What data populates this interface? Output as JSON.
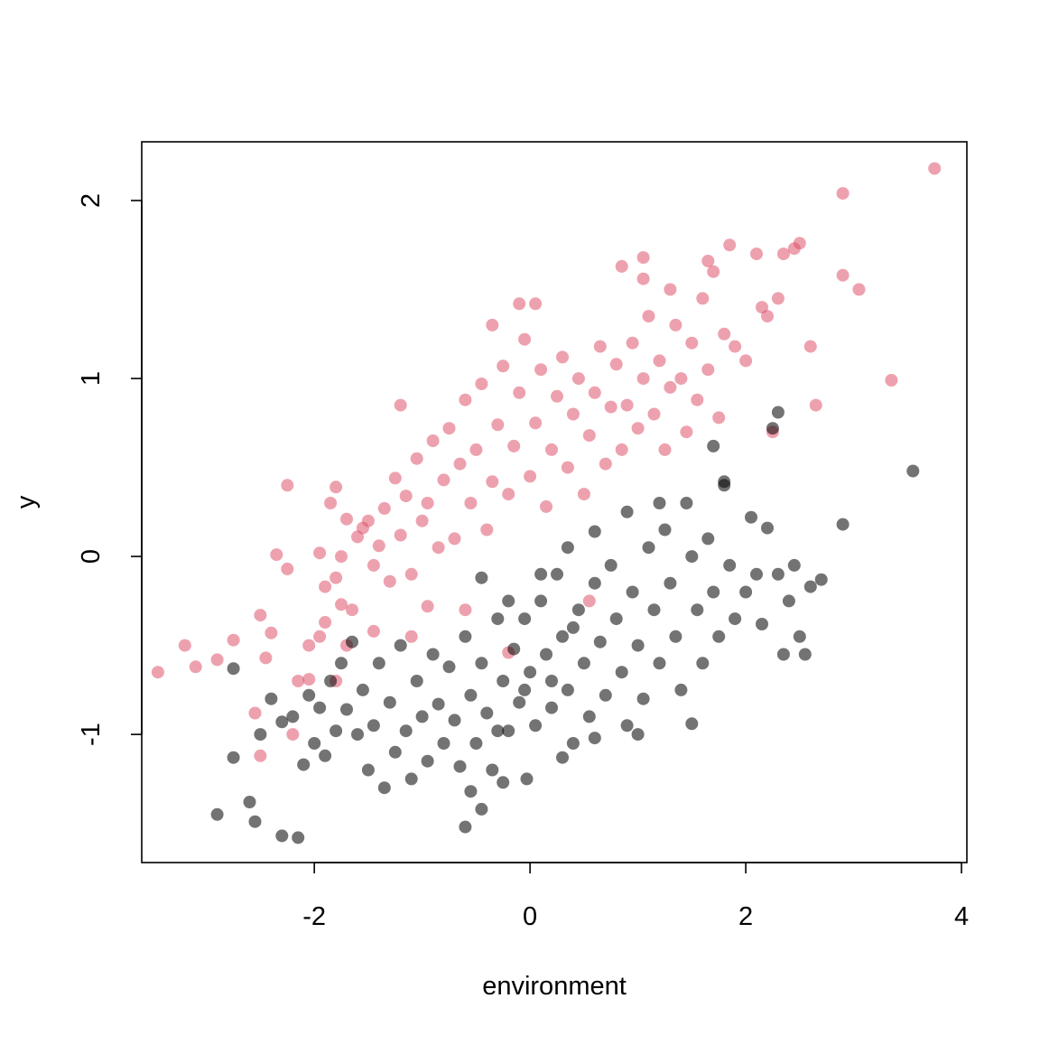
{
  "chart_data": {
    "type": "scatter",
    "title": "",
    "xlabel": "environment",
    "ylabel": "y",
    "xlim": [
      -3.6,
      4.05
    ],
    "ylim": [
      -1.72,
      2.33
    ],
    "x_ticks": [
      -2,
      0,
      2,
      4
    ],
    "y_ticks": [
      -1,
      0,
      1,
      2
    ],
    "x_tick_labels": [
      "-2",
      "0",
      "2",
      "4"
    ],
    "y_tick_labels": [
      "-1",
      "0",
      "1",
      "2"
    ],
    "grid": false,
    "legend": "none",
    "marker": "filled circle, semi-transparent",
    "series": [
      {
        "color": "#DF536B",
        "points": [
          [
            -3.45,
            -0.65
          ],
          [
            -3.1,
            -0.62
          ],
          [
            -3.2,
            -0.5
          ],
          [
            -2.9,
            -0.58
          ],
          [
            -2.75,
            -0.47
          ],
          [
            -2.55,
            -0.88
          ],
          [
            -2.5,
            -1.12
          ],
          [
            -2.45,
            -0.57
          ],
          [
            -2.4,
            -0.43
          ],
          [
            -2.5,
            -0.33
          ],
          [
            -2.35,
            0.01
          ],
          [
            -2.25,
            -0.07
          ],
          [
            -2.25,
            0.4
          ],
          [
            -2.2,
            -1.0
          ],
          [
            -2.15,
            -0.7
          ],
          [
            -2.05,
            -0.5
          ],
          [
            -1.95,
            -0.45
          ],
          [
            -1.95,
            0.02
          ],
          [
            -1.9,
            -0.37
          ],
          [
            -1.9,
            -0.17
          ],
          [
            -1.85,
            0.3
          ],
          [
            -1.8,
            -0.12
          ],
          [
            -1.8,
            0.39
          ],
          [
            -1.75,
            -0.27
          ],
          [
            -1.75,
            0.0
          ],
          [
            -1.7,
            0.21
          ],
          [
            -1.65,
            -0.3
          ],
          [
            -1.6,
            0.11
          ],
          [
            -1.55,
            0.16
          ],
          [
            -1.5,
            0.2
          ],
          [
            -1.45,
            -0.05
          ],
          [
            -1.4,
            0.06
          ],
          [
            -1.35,
            0.27
          ],
          [
            -1.3,
            -0.14
          ],
          [
            -1.25,
            0.44
          ],
          [
            -1.2,
            0.12
          ],
          [
            -1.15,
            0.34
          ],
          [
            -1.1,
            -0.1
          ],
          [
            -1.05,
            0.55
          ],
          [
            -1.0,
            0.2
          ],
          [
            -0.95,
            0.3
          ],
          [
            -0.9,
            0.65
          ],
          [
            -0.85,
            0.05
          ],
          [
            -0.8,
            0.43
          ],
          [
            -0.75,
            0.72
          ],
          [
            -0.7,
            0.1
          ],
          [
            -0.65,
            0.52
          ],
          [
            -0.6,
            0.88
          ],
          [
            -0.55,
            0.3
          ],
          [
            -0.5,
            0.6
          ],
          [
            -0.45,
            0.97
          ],
          [
            -0.4,
            0.15
          ],
          [
            -0.35,
            0.42
          ],
          [
            -0.3,
            0.74
          ],
          [
            -0.25,
            1.07
          ],
          [
            -0.2,
            0.35
          ],
          [
            -0.15,
            0.62
          ],
          [
            -0.1,
            0.92
          ],
          [
            -0.05,
            1.22
          ],
          [
            0.0,
            0.45
          ],
          [
            0.05,
            0.75
          ],
          [
            0.1,
            1.05
          ],
          [
            0.15,
            0.28
          ],
          [
            0.2,
            0.6
          ],
          [
            0.25,
            0.9
          ],
          [
            0.3,
            1.12
          ],
          [
            0.35,
            0.5
          ],
          [
            0.4,
            0.8
          ],
          [
            0.45,
            1.0
          ],
          [
            0.5,
            0.35
          ],
          [
            0.55,
            0.68
          ],
          [
            0.6,
            0.92
          ],
          [
            0.65,
            1.18
          ],
          [
            0.7,
            0.52
          ],
          [
            0.75,
            0.84
          ],
          [
            0.8,
            1.08
          ],
          [
            0.85,
            0.6
          ],
          [
            0.9,
            0.85
          ],
          [
            0.95,
            1.2
          ],
          [
            1.0,
            0.72
          ],
          [
            1.05,
            1.0
          ],
          [
            1.1,
            1.35
          ],
          [
            1.15,
            0.8
          ],
          [
            1.2,
            1.1
          ],
          [
            1.25,
            0.6
          ],
          [
            1.3,
            0.95
          ],
          [
            1.35,
            1.3
          ],
          [
            1.4,
            1.0
          ],
          [
            1.45,
            0.7
          ],
          [
            1.5,
            1.2
          ],
          [
            1.55,
            0.88
          ],
          [
            1.6,
            1.45
          ],
          [
            1.65,
            1.05
          ],
          [
            1.7,
            1.6
          ],
          [
            1.75,
            0.78
          ],
          [
            1.8,
            1.25
          ],
          [
            1.85,
            1.75
          ],
          [
            1.9,
            1.18
          ],
          [
            2.0,
            1.1
          ],
          [
            2.1,
            1.7
          ],
          [
            2.15,
            1.4
          ],
          [
            2.2,
            1.35
          ],
          [
            2.25,
            0.7
          ],
          [
            2.3,
            1.45
          ],
          [
            2.35,
            1.7
          ],
          [
            2.45,
            1.73
          ],
          [
            2.5,
            1.76
          ],
          [
            2.6,
            1.18
          ],
          [
            2.65,
            0.85
          ],
          [
            2.9,
            2.04
          ],
          [
            2.9,
            1.58
          ],
          [
            3.05,
            1.5
          ],
          [
            3.35,
            0.99
          ],
          [
            3.75,
            2.18
          ],
          [
            0.05,
            1.42
          ],
          [
            -0.1,
            1.42
          ],
          [
            -0.35,
            1.3
          ],
          [
            0.85,
            1.63
          ],
          [
            1.05,
            1.68
          ],
          [
            1.05,
            1.56
          ],
          [
            1.3,
            1.5
          ],
          [
            1.65,
            1.66
          ],
          [
            0.55,
            -0.25
          ],
          [
            -0.2,
            -0.54
          ],
          [
            -0.6,
            -0.3
          ],
          [
            -0.95,
            -0.28
          ],
          [
            -1.1,
            -0.45
          ],
          [
            -1.2,
            0.85
          ],
          [
            -1.45,
            -0.42
          ],
          [
            -1.7,
            -0.5
          ],
          [
            -1.8,
            -0.7
          ],
          [
            -2.05,
            -0.69
          ]
        ]
      },
      {
        "color": "#000000",
        "points": [
          [
            -2.9,
            -1.45
          ],
          [
            -2.6,
            -1.38
          ],
          [
            -2.55,
            -1.49
          ],
          [
            -2.3,
            -1.57
          ],
          [
            -2.15,
            -1.58
          ],
          [
            -2.75,
            -1.13
          ],
          [
            -2.75,
            -0.63
          ],
          [
            -2.5,
            -1.0
          ],
          [
            -2.4,
            -0.8
          ],
          [
            -2.3,
            -0.93
          ],
          [
            -2.2,
            -0.9
          ],
          [
            -2.1,
            -1.17
          ],
          [
            -2.05,
            -0.78
          ],
          [
            -2.0,
            -1.05
          ],
          [
            -1.95,
            -0.85
          ],
          [
            -1.9,
            -1.12
          ],
          [
            -1.85,
            -0.7
          ],
          [
            -1.8,
            -0.98
          ],
          [
            -1.75,
            -0.6
          ],
          [
            -1.7,
            -0.86
          ],
          [
            -1.65,
            -0.48
          ],
          [
            -1.6,
            -1.0
          ],
          [
            -1.55,
            -0.75
          ],
          [
            -1.5,
            -1.2
          ],
          [
            -1.45,
            -0.95
          ],
          [
            -1.4,
            -0.6
          ],
          [
            -1.35,
            -1.3
          ],
          [
            -1.3,
            -0.82
          ],
          [
            -1.25,
            -1.1
          ],
          [
            -1.2,
            -0.5
          ],
          [
            -1.15,
            -0.98
          ],
          [
            -1.1,
            -1.25
          ],
          [
            -1.05,
            -0.7
          ],
          [
            -1.0,
            -0.9
          ],
          [
            -0.95,
            -1.15
          ],
          [
            -0.9,
            -0.55
          ],
          [
            -0.85,
            -0.83
          ],
          [
            -0.8,
            -1.05
          ],
          [
            -0.75,
            -0.62
          ],
          [
            -0.7,
            -0.92
          ],
          [
            -0.65,
            -1.18
          ],
          [
            -0.6,
            -0.45
          ],
          [
            -0.55,
            -0.78
          ],
          [
            -0.5,
            -1.05
          ],
          [
            -0.45,
            -0.6
          ],
          [
            -0.4,
            -0.88
          ],
          [
            -0.35,
            -1.2
          ],
          [
            -0.3,
            -0.35
          ],
          [
            -0.25,
            -0.7
          ],
          [
            -0.2,
            -0.98
          ],
          [
            -0.15,
            -0.52
          ],
          [
            -0.1,
            -0.82
          ],
          [
            -0.05,
            -0.35
          ],
          [
            0.0,
            -0.65
          ],
          [
            0.05,
            -0.95
          ],
          [
            0.1,
            -0.25
          ],
          [
            0.15,
            -0.55
          ],
          [
            0.2,
            -0.85
          ],
          [
            0.25,
            -0.1
          ],
          [
            0.3,
            -0.45
          ],
          [
            0.35,
            -0.75
          ],
          [
            0.4,
            -1.05
          ],
          [
            0.45,
            -0.3
          ],
          [
            0.5,
            -0.6
          ],
          [
            0.55,
            -0.9
          ],
          [
            0.6,
            -0.15
          ],
          [
            0.65,
            -0.48
          ],
          [
            0.7,
            -0.78
          ],
          [
            0.75,
            -0.05
          ],
          [
            0.8,
            -0.35
          ],
          [
            0.85,
            -0.65
          ],
          [
            0.9,
            -0.95
          ],
          [
            0.95,
            -0.2
          ],
          [
            1.0,
            -0.5
          ],
          [
            1.05,
            -0.8
          ],
          [
            1.1,
            0.05
          ],
          [
            1.15,
            -0.3
          ],
          [
            1.2,
            -0.6
          ],
          [
            1.25,
            0.15
          ],
          [
            1.3,
            -0.15
          ],
          [
            1.35,
            -0.45
          ],
          [
            1.4,
            -0.75
          ],
          [
            1.45,
            0.3
          ],
          [
            1.5,
            0.0
          ],
          [
            1.55,
            -0.3
          ],
          [
            1.6,
            -0.6
          ],
          [
            1.65,
            0.1
          ],
          [
            1.7,
            -0.2
          ],
          [
            1.75,
            -0.45
          ],
          [
            1.8,
            0.4
          ],
          [
            1.85,
            -0.05
          ],
          [
            1.9,
            -0.35
          ],
          [
            2.0,
            -0.2
          ],
          [
            2.05,
            0.22
          ],
          [
            2.1,
            -0.1
          ],
          [
            2.15,
            -0.38
          ],
          [
            2.2,
            0.16
          ],
          [
            2.25,
            0.72
          ],
          [
            2.3,
            0.81
          ],
          [
            2.3,
            -0.1
          ],
          [
            2.35,
            -0.55
          ],
          [
            2.4,
            -0.25
          ],
          [
            2.45,
            -0.05
          ],
          [
            2.5,
            -0.45
          ],
          [
            2.55,
            -0.55
          ],
          [
            2.6,
            -0.17
          ],
          [
            2.7,
            -0.13
          ],
          [
            2.9,
            0.18
          ],
          [
            3.55,
            0.48
          ],
          [
            1.7,
            0.62
          ],
          [
            1.8,
            0.42
          ],
          [
            1.2,
            0.3
          ],
          [
            0.9,
            0.25
          ],
          [
            0.6,
            0.14
          ],
          [
            -0.55,
            -1.32
          ],
          [
            -0.6,
            -1.52
          ],
          [
            -0.45,
            -1.42
          ],
          [
            -0.25,
            -1.27
          ],
          [
            -0.03,
            -1.25
          ],
          [
            -0.3,
            -0.98
          ],
          [
            0.3,
            -1.13
          ],
          [
            0.6,
            -1.02
          ],
          [
            1.0,
            -1.0
          ],
          [
            1.5,
            -0.94
          ],
          [
            -0.05,
            -0.75
          ],
          [
            0.2,
            -0.7
          ],
          [
            0.4,
            -0.4
          ],
          [
            -0.2,
            -0.25
          ],
          [
            -0.45,
            -0.12
          ],
          [
            0.1,
            -0.1
          ],
          [
            0.35,
            0.05
          ]
        ]
      }
    ]
  }
}
